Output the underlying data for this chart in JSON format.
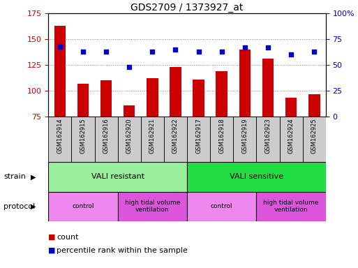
{
  "title": "GDS2709 / 1373927_at",
  "samples": [
    "GSM162914",
    "GSM162915",
    "GSM162916",
    "GSM162920",
    "GSM162921",
    "GSM162922",
    "GSM162917",
    "GSM162918",
    "GSM162919",
    "GSM162923",
    "GSM162924",
    "GSM162925"
  ],
  "counts": [
    163,
    107,
    110,
    86,
    112,
    123,
    111,
    119,
    140,
    131,
    93,
    97
  ],
  "percentile_ranks": [
    68,
    63,
    63,
    48,
    63,
    65,
    63,
    63,
    67,
    67,
    60,
    63
  ],
  "ylim_left": [
    75,
    175
  ],
  "ylim_right": [
    0,
    100
  ],
  "yticks_left": [
    75,
    100,
    125,
    150,
    175
  ],
  "yticks_right": [
    0,
    25,
    50,
    75,
    100
  ],
  "ytick_labels_right": [
    "0",
    "25",
    "50",
    "75",
    "100%"
  ],
  "bar_color": "#cc0000",
  "dot_color": "#0000cc",
  "strain_groups": [
    {
      "label": "VALI resistant",
      "start": 0,
      "end": 6,
      "color": "#99ee99"
    },
    {
      "label": "VALI sensitive",
      "start": 6,
      "end": 12,
      "color": "#22dd44"
    }
  ],
  "protocol_groups": [
    {
      "label": "control",
      "start": 0,
      "end": 3,
      "color": "#ee88ee"
    },
    {
      "label": "high tidal volume\nventilation",
      "start": 3,
      "end": 6,
      "color": "#dd55dd"
    },
    {
      "label": "control",
      "start": 6,
      "end": 9,
      "color": "#ee88ee"
    },
    {
      "label": "high tidal volume\nventilation",
      "start": 9,
      "end": 12,
      "color": "#dd55dd"
    }
  ],
  "strain_label": "strain",
  "protocol_label": "protocol",
  "legend_count_label": "count",
  "legend_pct_label": "percentile rank within the sample",
  "grid_yticks": [
    100,
    125,
    150
  ],
  "tick_label_area_color": "#cccccc",
  "bg_color": "#ffffff"
}
